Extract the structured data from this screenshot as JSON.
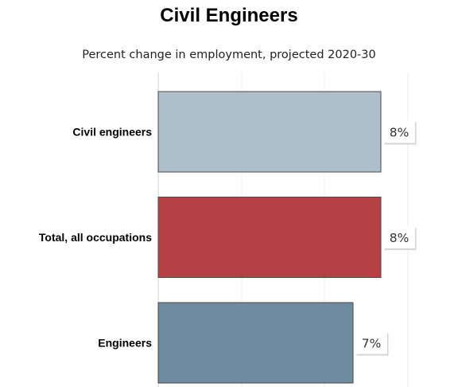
{
  "chart_data": {
    "type": "bar",
    "orientation": "horizontal",
    "title": "Civil Engineers",
    "subtitle": "Percent change in employment, projected 2020-30",
    "categories": [
      "Civil engineers",
      "Total, all occupations",
      "Engineers"
    ],
    "values": [
      8,
      8,
      7
    ],
    "value_labels": [
      "8%",
      "8%",
      "7%"
    ],
    "colors": [
      "#aebfcc",
      "#b54145",
      "#6e8ba0"
    ],
    "xlim": [
      0,
      10
    ],
    "grid": true,
    "legend": "none"
  }
}
